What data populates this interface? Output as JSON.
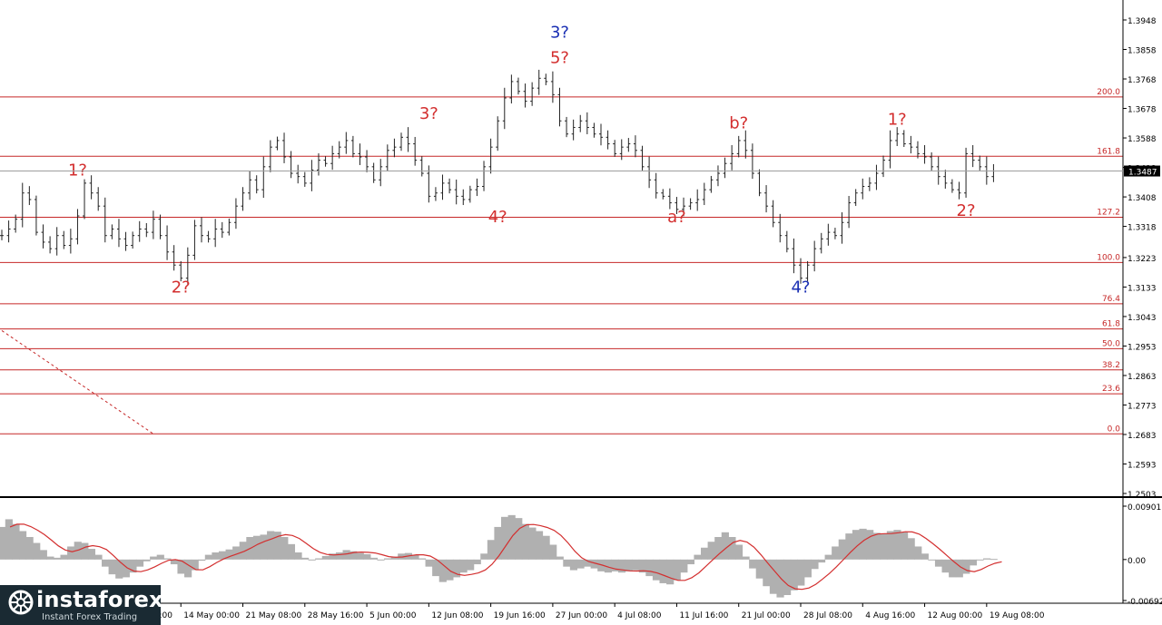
{
  "chart_data": [
    {
      "type": "candlestick",
      "ylim": [
        1.2503,
        1.3948
      ],
      "y_ticks": [
        "1.3948",
        "1.3858",
        "1.3768",
        "1.3678",
        "1.3588",
        "1.3498",
        "1.3408",
        "1.3318",
        "1.3223",
        "1.3133",
        "1.3043",
        "1.2953",
        "1.2863",
        "1.2773",
        "1.2683",
        "1.2593",
        "1.2503"
      ],
      "x_ticks": [
        {
          "label": "6 May 16:00",
          "x": 17
        },
        {
          "label": "14 May 00:00",
          "x": 26
        },
        {
          "label": "21 May 08:00",
          "x": 35
        },
        {
          "label": "28 May 16:00",
          "x": 44
        },
        {
          "label": "5 Jun 00:00",
          "x": 53
        },
        {
          "label": "12 Jun 08:00",
          "x": 62
        },
        {
          "label": "19 Jun 16:00",
          "x": 71
        },
        {
          "label": "27 Jun 00:00",
          "x": 80
        },
        {
          "label": "4 Jul 08:00",
          "x": 89
        },
        {
          "label": "11 Jul 16:00",
          "x": 98
        },
        {
          "label": "21 Jul 00:00",
          "x": 107
        },
        {
          "label": "28 Jul 08:00",
          "x": 116
        },
        {
          "label": "4 Aug 16:00",
          "x": 125
        },
        {
          "label": "12 Aug 00:00",
          "x": 134
        },
        {
          "label": "19 Aug 08:00",
          "x": 143
        }
      ],
      "current_price": "1.3487",
      "fib_levels": [
        {
          "label": "200.0",
          "value": 1.3713
        },
        {
          "label": "161.8",
          "value": 1.3532
        },
        {
          "label": "127.2",
          "value": 1.3346
        },
        {
          "label": "100.0",
          "value": 1.3208
        },
        {
          "label": "76.4",
          "value": 1.3082
        },
        {
          "label": "61.8",
          "value": 1.3005
        },
        {
          "label": "50.0",
          "value": 1.2945
        },
        {
          "label": "38.2",
          "value": 1.288
        },
        {
          "label": "23.6",
          "value": 1.2807
        },
        {
          "label": "0.0",
          "value": 1.2685
        }
      ],
      "trendline": [
        {
          "x": 0,
          "y": 1.3
        },
        {
          "x": 22,
          "y": 1.2685
        }
      ],
      "wave_labels": [
        {
          "text": "1?",
          "x": 11,
          "y": 1.3456,
          "color": "#d32f2f",
          "pos": "above"
        },
        {
          "text": "2?",
          "x": 26,
          "y": 1.316,
          "color": "#d32f2f",
          "pos": "below"
        },
        {
          "text": "3?",
          "x": 62,
          "y": 1.363,
          "color": "#d32f2f",
          "pos": "above"
        },
        {
          "text": "4?",
          "x": 72,
          "y": 1.3375,
          "color": "#d32f2f",
          "pos": "below"
        },
        {
          "text": "5?",
          "x": 81,
          "y": 1.38,
          "color": "#d32f2f",
          "pos": "above"
        },
        {
          "text": "3?",
          "x": 81,
          "y": 1.3878,
          "color": "#1a2fb3",
          "pos": "above"
        },
        {
          "text": "b?",
          "x": 107,
          "y": 1.36,
          "color": "#d32f2f",
          "pos": "above"
        },
        {
          "text": "a?",
          "x": 98,
          "y": 1.3375,
          "color": "#d32f2f",
          "pos": "below"
        },
        {
          "text": "4?",
          "x": 116,
          "y": 1.316,
          "color": "#1a2fb3",
          "pos": "below"
        },
        {
          "text": "1?",
          "x": 130,
          "y": 1.3612,
          "color": "#d32f2f",
          "pos": "above"
        },
        {
          "text": "2?",
          "x": 140,
          "y": 1.3395,
          "color": "#d32f2f",
          "pos": "below"
        }
      ],
      "series": [
        {
          "name": "",
          "values": [
            1.329,
            1.331,
            1.334,
            1.342,
            1.34,
            1.33,
            1.327,
            1.325,
            1.329,
            1.326,
            1.328,
            1.335,
            1.345,
            1.342,
            1.338,
            1.329,
            1.331,
            1.328,
            1.326,
            1.329,
            1.331,
            1.33,
            1.334,
            1.329,
            1.324,
            1.32,
            1.316,
            1.323,
            1.332,
            1.329,
            1.328,
            1.331,
            1.33,
            1.333,
            1.338,
            1.342,
            1.346,
            1.343,
            1.35,
            1.356,
            1.358,
            1.353,
            1.348,
            1.347,
            1.345,
            1.349,
            1.352,
            1.351,
            1.354,
            1.356,
            1.358,
            1.354,
            1.353,
            1.35,
            1.346,
            1.35,
            1.355,
            1.356,
            1.359,
            1.357,
            1.352,
            1.348,
            1.341,
            1.342,
            1.345,
            1.343,
            1.341,
            1.34,
            1.343,
            1.344,
            1.35,
            1.356,
            1.364,
            1.371,
            1.376,
            1.373,
            1.37,
            1.374,
            1.377,
            1.376,
            1.372,
            1.364,
            1.36,
            1.362,
            1.364,
            1.362,
            1.36,
            1.359,
            1.357,
            1.354,
            1.356,
            1.357,
            1.355,
            1.35,
            1.346,
            1.342,
            1.341,
            1.339,
            1.337,
            1.338,
            1.339,
            1.34,
            1.343,
            1.346,
            1.348,
            1.351,
            1.354,
            1.358,
            1.355,
            1.348,
            1.342,
            1.338,
            1.333,
            1.329,
            1.325,
            1.32,
            1.316,
            1.32,
            1.325,
            1.328,
            1.33,
            1.329,
            1.333,
            1.339,
            1.342,
            1.344,
            1.345,
            1.348,
            1.352,
            1.358,
            1.36,
            1.357,
            1.356,
            1.354,
            1.353,
            1.35,
            1.347,
            1.345,
            1.343,
            1.342,
            1.354,
            1.352,
            1.35,
            1.347,
            1.3487
          ]
        }
      ]
    },
    {
      "type": "area",
      "ylim": [
        -0.00692,
        0.00901
      ],
      "y_ticks": [
        "0.00901",
        "0.00",
        "-0.00692"
      ],
      "series": [
        {
          "name": "",
          "values": [
            0.0055,
            0.0068,
            0.006,
            0.0048,
            0.0038,
            0.0028,
            0.0016,
            0.0005,
            0.0003,
            0.0008,
            0.0022,
            0.003,
            0.0028,
            0.0018,
            0.0008,
            -0.0012,
            -0.0025,
            -0.0032,
            -0.003,
            -0.0022,
            -0.0012,
            -0.0003,
            0.0005,
            0.0008,
            0.0002,
            -0.0008,
            -0.0024,
            -0.003,
            -0.0018,
            -0.0002,
            0.0008,
            0.0012,
            0.0014,
            0.0017,
            0.0022,
            0.003,
            0.0038,
            0.004,
            0.0042,
            0.0048,
            0.0047,
            0.0038,
            0.0026,
            0.0012,
            0.0003,
            0.0,
            0.0002,
            0.0006,
            0.001,
            0.0012,
            0.0016,
            0.0014,
            0.0011,
            0.0009,
            0.0003,
            -0.0001,
            0.0002,
            0.0005,
            0.001,
            0.0011,
            0.0008,
            0.0002,
            -0.0012,
            -0.0028,
            -0.0038,
            -0.0035,
            -0.003,
            -0.0022,
            -0.0018,
            -0.0008,
            0.001,
            0.0033,
            0.0055,
            0.0072,
            0.0075,
            0.007,
            0.006,
            0.0054,
            0.0048,
            0.004,
            0.0025,
            0.0005,
            -0.0012,
            -0.0018,
            -0.0015,
            -0.0012,
            -0.0015,
            -0.002,
            -0.0022,
            -0.002,
            -0.0022,
            -0.002,
            -0.0018,
            -0.0022,
            -0.0028,
            -0.0035,
            -0.004,
            -0.0042,
            -0.0035,
            -0.0022,
            -0.0008,
            0.0008,
            0.002,
            0.003,
            0.0038,
            0.0046,
            0.0038,
            0.0025,
            0.0005,
            -0.0015,
            -0.0032,
            -0.0045,
            -0.0058,
            -0.0064,
            -0.006,
            -0.0052,
            -0.0044,
            -0.003,
            -0.0016,
            -0.0005,
            0.0008,
            0.0022,
            0.0034,
            0.0044,
            0.005,
            0.0052,
            0.005,
            0.0045,
            0.0044,
            0.0048,
            0.005,
            0.0046,
            0.0036,
            0.0022,
            0.001,
            0.0,
            -0.0012,
            -0.0022,
            -0.003,
            -0.003,
            -0.0024,
            -0.001,
            0.0,
            0.0002,
            0.0001
          ]
        }
      ]
    }
  ],
  "watermark": {
    "brand": "instaforex",
    "tagline": "Instant Forex Trading"
  }
}
